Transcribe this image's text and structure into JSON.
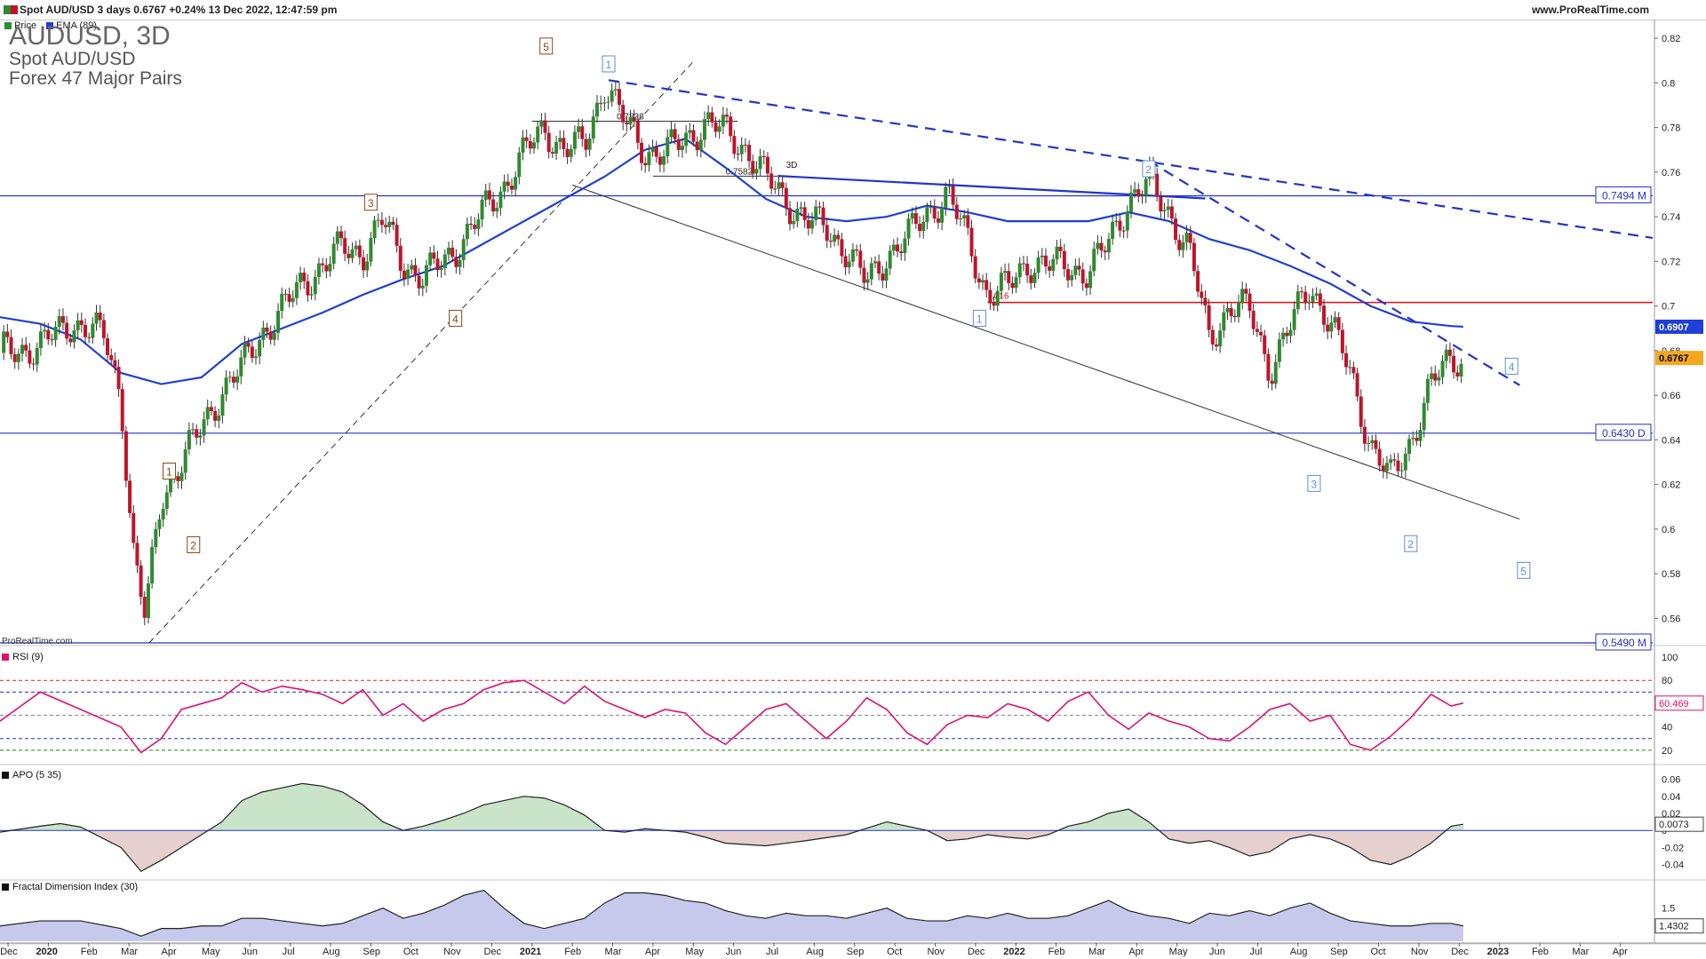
{
  "header": {
    "title": "Spot AUD/USD 3 days 0.6767 +0.24% 13 Dec 2022, 12:47:59 pm",
    "site": "www.ProRealTime.com"
  },
  "legend": {
    "price": "Price",
    "ema": "EMA (89)"
  },
  "symbol": {
    "ticker": "AUDUSD, 3D",
    "name": "Spot AUD/USD",
    "group": "Forex 47 Major Pairs"
  },
  "brand": "ProRealTime.com",
  "colors": {
    "up": "#2e8b2e",
    "down": "#c0142a",
    "ema": "#1f3fd6",
    "blue_line": "#2233cc",
    "red_level": "#e01010",
    "rsi": "#e0116a",
    "apo_pos": "#c9e4c9",
    "apo_neg": "#e6cfcf",
    "fdi": "#c7c9ec"
  },
  "chart_data": [
    {
      "type": "line",
      "pane": "price",
      "ylim": [
        0.549,
        0.826
      ],
      "y_ticks": [
        0.56,
        0.58,
        0.6,
        0.62,
        0.64,
        0.66,
        0.68,
        0.7,
        0.72,
        0.74,
        0.76,
        0.78,
        0.8,
        0.82
      ],
      "y_tick_labels": [
        "0.56",
        "0.58",
        "0.6",
        "0.62",
        "0.64",
        "0.66",
        "0.68",
        "0.7",
        "0.72",
        "0.74",
        "0.76",
        "0.78",
        "0.8",
        "0.82"
      ],
      "x_tick_labels": [
        "Dec",
        "2020",
        "Feb",
        "Mar",
        "Apr",
        "May",
        "Jun",
        "Jul",
        "Aug",
        "Sep",
        "Oct",
        "Nov",
        "Dec",
        "2021",
        "Feb",
        "Mar",
        "Apr",
        "May",
        "Jun",
        "Jul",
        "Aug",
        "Sep",
        "Oct",
        "Nov",
        "Dec",
        "2022",
        "Feb",
        "Mar",
        "Apr",
        "May",
        "Jun",
        "Jul",
        "Aug",
        "Sep",
        "Oct",
        "Nov",
        "Dec",
        "2023",
        "Feb",
        "Mar",
        "Apr"
      ],
      "x_tick_t": [
        0.2,
        1.2,
        2.2,
        3.2,
        4.2,
        5.2,
        6.2,
        7.2,
        8.2,
        9.2,
        10.2,
        11.2,
        12.2,
        13.2,
        14.2,
        15.2,
        16.2,
        17.2,
        18.2,
        19.2,
        20.2,
        21.2,
        22.2,
        23.2,
        24.2,
        25.2,
        26.2,
        27.2,
        28.2,
        29.2,
        30.2,
        31.2,
        32.2,
        33.2,
        34.2,
        35.2,
        36.2,
        37.2,
        38.2,
        39.2,
        40.2
      ],
      "series": [
        {
          "x": [
            0,
            1,
            1.8,
            2.6,
            3.0,
            3.3,
            3.6,
            4.0,
            4.5,
            5.0,
            5.5,
            6.0,
            6.5,
            7.0,
            7.5,
            8.0,
            8.5,
            9.0,
            9.5,
            10.0,
            10.5,
            11.0,
            11.5,
            12.0,
            12.5,
            13.0,
            13.5,
            14.0,
            14.5,
            15.0,
            15.5,
            16.0,
            16.5,
            17.0,
            17.5,
            18.0,
            18.5,
            19.0,
            19.5,
            20.0,
            20.5,
            21.0,
            21.5,
            22.0,
            22.5,
            23.0,
            23.5,
            24.0,
            24.5,
            25.0,
            25.5,
            26.0,
            26.5,
            27.0,
            27.5,
            28.0,
            28.5,
            29.0,
            29.5,
            30.0,
            30.5,
            31.0,
            31.5,
            32.0,
            32.5,
            33.0,
            33.5,
            34.0,
            34.5,
            35.0,
            35.5,
            36.0,
            36.3
          ],
          "y": [
            0.679,
            0.682,
            0.693,
            0.686,
            0.66,
            0.59,
            0.56,
            0.615,
            0.63,
            0.645,
            0.662,
            0.672,
            0.688,
            0.698,
            0.71,
            0.718,
            0.726,
            0.724,
            0.738,
            0.72,
            0.712,
            0.72,
            0.73,
            0.742,
            0.754,
            0.768,
            0.78,
            0.77,
            0.772,
            0.8,
            0.782,
            0.77,
            0.768,
            0.775,
            0.782,
            0.778,
            0.771,
            0.757,
            0.748,
            0.738,
            0.735,
            0.725,
            0.71,
            0.723,
            0.73,
            0.742,
            0.75,
            0.73,
            0.705,
            0.708,
            0.72,
            0.718,
            0.718,
            0.715,
            0.728,
            0.748,
            0.755,
            0.742,
            0.725,
            0.685,
            0.7,
            0.698,
            0.672,
            0.69,
            0.71,
            0.692,
            0.67,
            0.638,
            0.622,
            0.64,
            0.664,
            0.677,
            0.6767
          ]
        },
        {
          "name": "EMA (89)",
          "x": [
            0,
            1,
            2,
            3,
            4,
            5,
            6,
            7,
            8,
            9,
            10,
            11,
            12,
            13,
            14,
            15,
            16,
            17,
            18,
            19,
            20,
            21,
            22,
            23,
            24,
            25,
            26,
            27,
            28,
            29,
            30,
            31,
            32,
            33,
            34,
            35,
            36,
            36.3
          ],
          "y": [
            0.695,
            0.692,
            0.685,
            0.67,
            0.665,
            0.668,
            0.683,
            0.69,
            0.697,
            0.705,
            0.712,
            0.718,
            0.728,
            0.738,
            0.748,
            0.758,
            0.77,
            0.775,
            0.762,
            0.748,
            0.74,
            0.738,
            0.74,
            0.745,
            0.742,
            0.738,
            0.738,
            0.738,
            0.742,
            0.738,
            0.73,
            0.725,
            0.718,
            0.71,
            0.7,
            0.693,
            0.691,
            0.6907
          ]
        }
      ],
      "levels": [
        {
          "name": "0.7494 M",
          "value": 0.7494
        },
        {
          "name": "0.6430 D",
          "value": 0.643
        },
        {
          "name": "0.5490 M",
          "value": 0.549
        }
      ],
      "price_tags": [
        "0.6907",
        "0.6767"
      ],
      "fib_labels": [
        "0.7828",
        "0.7582",
        ".016",
        "3D"
      ],
      "annotations": [
        {
          "label": "5",
          "t": 13.55,
          "y": 0.8165,
          "color": "brown"
        },
        {
          "label": "3",
          "t": 9.2,
          "y": 0.7465,
          "color": "brown"
        },
        {
          "label": "4",
          "t": 11.3,
          "y": 0.6945,
          "color": "brown"
        },
        {
          "label": "1",
          "t": 4.2,
          "y": 0.626,
          "color": "brown"
        },
        {
          "label": "2",
          "t": 4.8,
          "y": 0.593,
          "color": "brown"
        },
        {
          "label": "1",
          "t": 15.1,
          "y": 0.8085,
          "color": "blue"
        },
        {
          "label": "2",
          "t": 28.5,
          "y": 0.7615,
          "color": "blue"
        },
        {
          "label": "1",
          "t": 24.3,
          "y": 0.6945,
          "color": "blue"
        },
        {
          "label": "3",
          "t": 32.6,
          "y": 0.6205,
          "color": "blue"
        },
        {
          "label": "2",
          "t": 35.0,
          "y": 0.5935,
          "color": "blue"
        },
        {
          "label": "4",
          "t": 37.5,
          "y": 0.673,
          "color": "blue"
        },
        {
          "label": "5",
          "t": 37.8,
          "y": 0.5815,
          "color": "blue"
        }
      ]
    },
    {
      "type": "line",
      "pane": "rsi",
      "title": "RSI (9)",
      "ylim": [
        10,
        100
      ],
      "y_ticks": [
        20,
        40,
        60,
        80,
        100
      ],
      "reference_lines": [
        20,
        30,
        50,
        70,
        80
      ],
      "current": "60.469",
      "series": [
        {
          "x": [
            0,
            1,
            2,
            3,
            3.5,
            4,
            4.5,
            5,
            5.5,
            6,
            6.5,
            7,
            7.5,
            8,
            8.5,
            9,
            9.5,
            10,
            10.5,
            11,
            11.5,
            12,
            12.5,
            13,
            13.5,
            14,
            14.5,
            15,
            15.5,
            16,
            16.5,
            17,
            17.5,
            18,
            18.5,
            19,
            19.5,
            20,
            20.5,
            21,
            21.5,
            22,
            22.5,
            23,
            23.5,
            24,
            24.5,
            25,
            25.5,
            26,
            26.5,
            27,
            27.5,
            28,
            28.5,
            29,
            29.5,
            30,
            30.5,
            31,
            31.5,
            32,
            32.5,
            33,
            33.5,
            34,
            34.5,
            35,
            35.5,
            36,
            36.3
          ],
          "y": [
            45,
            70,
            55,
            40,
            18,
            30,
            55,
            60,
            65,
            78,
            70,
            75,
            72,
            68,
            60,
            72,
            50,
            60,
            45,
            55,
            60,
            72,
            78,
            80,
            70,
            60,
            75,
            62,
            55,
            48,
            55,
            52,
            35,
            25,
            40,
            55,
            60,
            45,
            30,
            45,
            65,
            55,
            35,
            25,
            42,
            50,
            48,
            60,
            55,
            45,
            62,
            70,
            50,
            38,
            52,
            45,
            40,
            30,
            28,
            40,
            55,
            60,
            45,
            50,
            25,
            20,
            32,
            48,
            68,
            58,
            60.469
          ]
        }
      ]
    },
    {
      "type": "area",
      "pane": "apo",
      "title": "APO (5 35)",
      "ylim": [
        -0.055,
        0.07
      ],
      "y_ticks": [
        0.06,
        0.04,
        0.02,
        0,
        -0.02,
        -0.04
      ],
      "y_tick_labels": [
        "0.06",
        "0.04",
        "0.02",
        "0",
        "-0.02",
        "-0.04"
      ],
      "current": "0.0073",
      "series": [
        {
          "x": [
            0,
            1,
            1.5,
            2,
            3,
            3.5,
            4,
            4.5,
            5,
            5.5,
            6,
            6.5,
            7,
            7.5,
            8,
            8.5,
            9,
            9.5,
            10,
            10.5,
            11,
            11.5,
            12,
            12.5,
            13,
            13.5,
            14,
            14.5,
            15,
            15.5,
            16,
            16.5,
            17,
            17.5,
            18,
            19,
            20,
            21,
            22,
            23,
            23.5,
            24,
            24.5,
            25,
            25.5,
            26,
            26.5,
            27,
            27.5,
            28,
            28.5,
            29,
            29.5,
            30,
            30.5,
            31,
            31.5,
            32,
            32.5,
            33,
            33.5,
            34,
            34.5,
            35,
            35.5,
            36,
            36.3
          ],
          "y": [
            -0.002,
            0.005,
            0.008,
            0.004,
            -0.02,
            -0.048,
            -0.035,
            -0.02,
            -0.005,
            0.01,
            0.035,
            0.045,
            0.05,
            0.055,
            0.052,
            0.045,
            0.03,
            0.01,
            0.0,
            0.005,
            0.012,
            0.02,
            0.03,
            0.035,
            0.04,
            0.038,
            0.03,
            0.018,
            0.0,
            -0.002,
            0.002,
            0.0,
            -0.002,
            -0.008,
            -0.015,
            -0.018,
            -0.012,
            -0.005,
            0.01,
            0.0,
            -0.012,
            -0.01,
            -0.005,
            -0.008,
            -0.01,
            -0.005,
            0.005,
            0.01,
            0.02,
            0.025,
            0.01,
            -0.01,
            -0.015,
            -0.012,
            -0.02,
            -0.03,
            -0.025,
            -0.01,
            -0.005,
            -0.01,
            -0.02,
            -0.035,
            -0.04,
            -0.03,
            -0.015,
            0.005,
            0.0073
          ]
        }
      ]
    },
    {
      "type": "area",
      "pane": "fdi",
      "title": "Fractal Dimension Index (30)",
      "ylim": [
        1.37,
        1.6
      ],
      "y_ticks": [
        1.5
      ],
      "y_tick_labels": [
        "1.5"
      ],
      "current": "1.4302",
      "series": [
        {
          "x": [
            0,
            1,
            2,
            3,
            3.5,
            4,
            4.5,
            5,
            5.5,
            6,
            6.5,
            7,
            7.5,
            8,
            8.5,
            9,
            9.5,
            10,
            10.5,
            11,
            11.5,
            12,
            12.5,
            13,
            13.5,
            14,
            14.5,
            15,
            15.5,
            16,
            16.5,
            17,
            17.5,
            18,
            18.5,
            19,
            19.5,
            20,
            20.5,
            21,
            21.5,
            22,
            22.5,
            23,
            23.5,
            24,
            24.5,
            25,
            25.5,
            26,
            26.5,
            27,
            27.5,
            28,
            28.5,
            29,
            29.5,
            30,
            30.5,
            31,
            31.5,
            32,
            32.5,
            33,
            33.5,
            34,
            34.5,
            35,
            35.5,
            36,
            36.3
          ],
          "y": [
            1.43,
            1.45,
            1.45,
            1.42,
            1.39,
            1.42,
            1.42,
            1.43,
            1.43,
            1.46,
            1.46,
            1.45,
            1.44,
            1.43,
            1.44,
            1.47,
            1.5,
            1.46,
            1.48,
            1.51,
            1.55,
            1.57,
            1.5,
            1.44,
            1.42,
            1.44,
            1.46,
            1.52,
            1.56,
            1.56,
            1.55,
            1.53,
            1.52,
            1.49,
            1.47,
            1.46,
            1.48,
            1.47,
            1.47,
            1.46,
            1.48,
            1.5,
            1.46,
            1.45,
            1.45,
            1.47,
            1.46,
            1.48,
            1.46,
            1.46,
            1.47,
            1.5,
            1.53,
            1.49,
            1.47,
            1.46,
            1.44,
            1.48,
            1.47,
            1.49,
            1.47,
            1.5,
            1.52,
            1.48,
            1.45,
            1.44,
            1.43,
            1.43,
            1.44,
            1.44,
            1.4302
          ]
        }
      ]
    }
  ]
}
